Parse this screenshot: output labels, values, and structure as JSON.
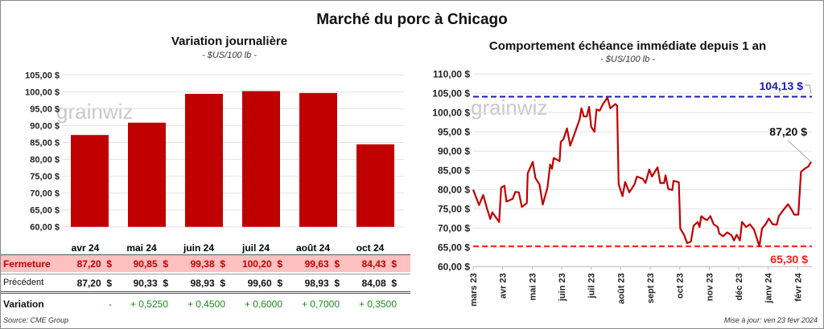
{
  "title": "Marché du porc à Chicago",
  "watermark": "grainwiz",
  "source": "Source: CME Group",
  "updated": "Mise à jour: ven 23 févr 2024",
  "colors": {
    "bar": "#c00000",
    "line": "#c00000",
    "high": "#1a1ab8",
    "low": "#ff1a1a",
    "fermeture_bg": "#ffc0c0",
    "positive": "#1a8a1a"
  },
  "table": {
    "row_labels": {
      "close": "Fermeture",
      "previous": "Précédent",
      "change": "Variation"
    },
    "columns": [
      "avr 24",
      "mai 24",
      "juin 24",
      "juil 24",
      "août 24",
      "oct 24"
    ],
    "close": [
      "87,20  $",
      "90,85  $",
      "99,38  $",
      "100,20  $",
      "99,63  $",
      "84,43  $"
    ],
    "previous": [
      "87,20  $",
      "90,33  $",
      "98,93  $",
      "99,60  $",
      "98,93  $",
      "84,08  $"
    ],
    "change": [
      "-",
      "+ 0,5250",
      "+ 0,4500",
      "+ 0,6000",
      "+ 0,7000",
      "+ 0,3500"
    ]
  },
  "chart_data": [
    {
      "type": "bar",
      "title": "Variation journalière",
      "subtitle": "- $US/100 lb -",
      "categories": [
        "avr 24",
        "mai 24",
        "juin 24",
        "juil 24",
        "août 24",
        "oct 24"
      ],
      "values": [
        87.2,
        90.85,
        99.38,
        100.2,
        99.63,
        84.43
      ],
      "ylim": [
        60,
        105
      ],
      "yticks": [
        "60,00 $",
        "65,00 $",
        "70,00 $",
        "75,00 $",
        "80,00 $",
        "85,00 $",
        "90,00 $",
        "95,00 $",
        "100,00 $",
        "105,00 $"
      ],
      "grid": true
    },
    {
      "type": "line",
      "title": "Comportement  échéance immédiate depuis 1 an",
      "subtitle": "- $US/100 lb -",
      "ylim": [
        60,
        110
      ],
      "yticks": [
        "60,00 $",
        "65,00 $",
        "70,00 $",
        "75,00 $",
        "80,00 $",
        "85,00 $",
        "90,00 $",
        "95,00 $",
        "100,00 $",
        "105,00 $",
        "110,00 $"
      ],
      "xticks": [
        "mars 23",
        "avr 23",
        "mai 23",
        "juin 23",
        "juil 23",
        "août 23",
        "sept 23",
        "oct 23",
        "nov 23",
        "déc 23",
        "janv 24",
        "févr 24"
      ],
      "grid": true,
      "high": {
        "value": 104.13,
        "label": "104,13 $"
      },
      "low": {
        "value": 65.3,
        "label": "65,30 $"
      },
      "last": {
        "value": 87.2,
        "label": "87,20 $"
      },
      "points": [
        [
          0,
          80
        ],
        [
          0.2,
          76
        ],
        [
          0.34,
          78.6
        ],
        [
          0.47,
          75.1
        ],
        [
          0.58,
          72.4
        ],
        [
          0.65,
          74.1
        ],
        [
          0.88,
          71.6
        ],
        [
          0.95,
          80.5
        ],
        [
          1.06,
          81
        ],
        [
          1.13,
          76.9
        ],
        [
          1.34,
          77.6
        ],
        [
          1.43,
          79.4
        ],
        [
          1.55,
          79.3
        ],
        [
          1.65,
          75.5
        ],
        [
          1.82,
          76.5
        ],
        [
          1.85,
          84.2
        ],
        [
          2.02,
          87.2
        ],
        [
          2.11,
          83
        ],
        [
          2.25,
          81.3
        ],
        [
          2.36,
          76.1
        ],
        [
          2.52,
          80.6
        ],
        [
          2.61,
          86.5
        ],
        [
          2.67,
          85.4
        ],
        [
          2.73,
          88.2
        ],
        [
          2.93,
          87.4
        ],
        [
          2.97,
          92.4
        ],
        [
          3.06,
          93.1
        ],
        [
          3.18,
          95.9
        ],
        [
          3.29,
          91.4
        ],
        [
          3.47,
          95.2
        ],
        [
          3.61,
          98.3
        ],
        [
          3.67,
          101.1
        ],
        [
          3.75,
          99
        ],
        [
          3.85,
          99
        ],
        [
          3.93,
          101.5
        ],
        [
          4,
          96.3
        ],
        [
          4.11,
          95
        ],
        [
          4.18,
          100.8
        ],
        [
          4.29,
          100.5
        ],
        [
          4.4,
          102.2
        ],
        [
          4.55,
          103.9
        ],
        [
          4.65,
          101.1
        ],
        [
          4.82,
          102.2
        ],
        [
          4.88,
          101.8
        ],
        [
          4.93,
          81.4
        ],
        [
          5.06,
          78.3
        ],
        [
          5.15,
          82
        ],
        [
          5.29,
          79.3
        ],
        [
          5.47,
          81.4
        ],
        [
          5.55,
          83.4
        ],
        [
          5.75,
          82.8
        ],
        [
          5.84,
          81.7
        ],
        [
          5.97,
          85.2
        ],
        [
          6.06,
          83.4
        ],
        [
          6.25,
          85.8
        ],
        [
          6.34,
          81.7
        ],
        [
          6.47,
          81.7
        ],
        [
          6.52,
          83.7
        ],
        [
          6.61,
          80.2
        ],
        [
          6.75,
          79.9
        ],
        [
          6.79,
          82.3
        ],
        [
          6.97,
          81.9
        ],
        [
          7.02,
          69.9
        ],
        [
          7.15,
          68.2
        ],
        [
          7.25,
          66.1
        ],
        [
          7.38,
          66.5
        ],
        [
          7.47,
          70.6
        ],
        [
          7.61,
          71.6
        ],
        [
          7.67,
          70.3
        ],
        [
          7.73,
          73.1
        ],
        [
          7.84,
          72.4
        ],
        [
          7.93,
          72.1
        ],
        [
          8.04,
          73.1
        ],
        [
          8.15,
          71
        ],
        [
          8.29,
          70.3
        ],
        [
          8.34,
          68.6
        ],
        [
          8.47,
          67.9
        ],
        [
          8.61,
          68.9
        ],
        [
          8.75,
          68.2
        ],
        [
          8.84,
          66.8
        ],
        [
          8.93,
          68.3
        ],
        [
          9.04,
          66.8
        ],
        [
          9.11,
          71.6
        ],
        [
          9.25,
          70.3
        ],
        [
          9.38,
          71
        ],
        [
          9.52,
          69.6
        ],
        [
          9.7,
          65.3
        ],
        [
          9.79,
          69.9
        ],
        [
          9.91,
          71
        ],
        [
          10.02,
          72.5
        ],
        [
          10.15,
          71
        ],
        [
          10.29,
          70.9
        ],
        [
          10.36,
          73.1
        ],
        [
          10.52,
          74.8
        ],
        [
          10.67,
          76.2
        ],
        [
          10.79,
          74.8
        ],
        [
          10.88,
          73.5
        ],
        [
          11.02,
          73.5
        ],
        [
          11.11,
          84.6
        ],
        [
          11.25,
          85.5
        ],
        [
          11.36,
          86
        ],
        [
          11.45,
          87.2
        ]
      ]
    }
  ]
}
